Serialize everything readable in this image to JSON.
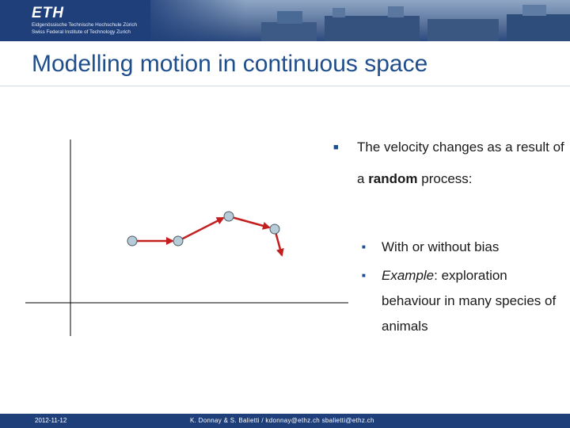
{
  "header": {
    "logo": "ETH",
    "institution_line1": "Eidgenössische Technische Hochschule Zürich",
    "institution_line2": "Swiss Federal Institute of Technology Zurich"
  },
  "slide": {
    "title": "Modelling motion in continuous space",
    "bullet": {
      "text_before": "The velocity changes as a result of a ",
      "emphasis": "random",
      "text_after": " process:"
    },
    "sub_bullets": [
      {
        "text": "With or without bias"
      },
      {
        "emphasis": "Example",
        "text": ": exploration behaviour in many species of animals"
      }
    ]
  },
  "footer": {
    "date": "2012-11-12",
    "authors": "K. Donnay & S. Balietti /  kdonnay@ethz.ch  sbalietti@ethz.ch"
  },
  "colors": {
    "brand_blue": "#1f3f7a",
    "title_blue": "#1f4e8c",
    "path_red": "#c41e1e",
    "node_fill": "#b8ccd8"
  },
  "icons": [
    "bullet-square-icon"
  ]
}
